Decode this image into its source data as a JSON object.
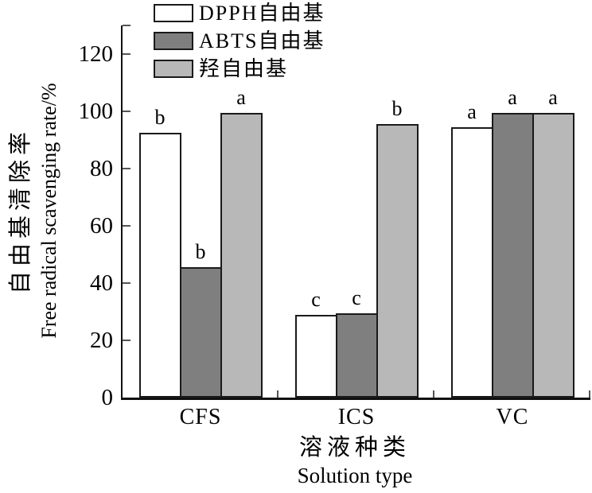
{
  "chart_data": {
    "type": "bar",
    "title": "",
    "categories": [
      "CFS",
      "ICS",
      "VC"
    ],
    "series": [
      {
        "name": "DPPH自由基",
        "color": "#ffffff",
        "values": [
          92.5,
          29,
          94.5
        ],
        "letters": [
          "b",
          "c",
          "a"
        ]
      },
      {
        "name": "ABTS自由基",
        "color": "#7f7f7f",
        "values": [
          45.5,
          29.5,
          99.5
        ],
        "letters": [
          "b",
          "c",
          "a"
        ]
      },
      {
        "name": "羟自由基",
        "color": "#b8b8b8",
        "values": [
          99.5,
          95.5,
          99.5
        ],
        "letters": [
          "a",
          "b",
          "a"
        ]
      }
    ],
    "ylabel_zh": "自由基清除率",
    "ylabel_en": "Free radical scavenging rate/%",
    "xlabel_zh": "溶液种类",
    "xlabel_en": "Solution type",
    "yticks": [
      0,
      20,
      40,
      60,
      80,
      100,
      120
    ],
    "ylim": [
      0,
      130
    ],
    "grid": false,
    "legend_position": "top-left",
    "colors": {
      "axis": "#111111",
      "tick": "#555555",
      "bar_border": "#1a1a1a",
      "text": "#000000",
      "background": "#ffffff"
    }
  }
}
